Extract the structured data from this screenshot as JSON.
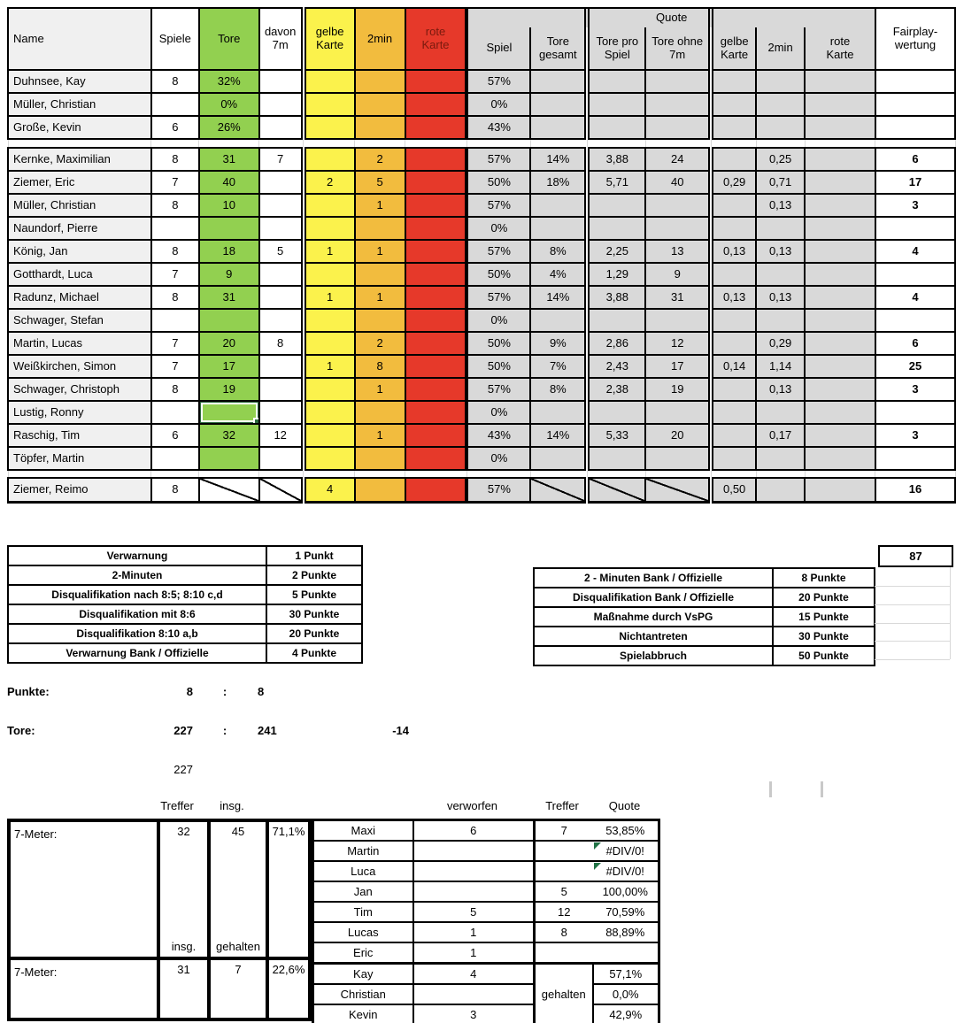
{
  "colors": {
    "green": "#92D050",
    "yellow": "#FBF24C",
    "orange": "#F2BC3E",
    "red": "#E6392A",
    "quote_gray": "#D9D9D9",
    "name_gray": "#F0F0F0",
    "selection_green": "#2E6B3E",
    "error_marker_green": "#217346",
    "red_header_text": "#7A1A0E"
  },
  "main_table": {
    "quote_group_label": "Quote",
    "columns": [
      {
        "key": "name",
        "label": "Name"
      },
      {
        "key": "spiele",
        "label": "Spiele"
      },
      {
        "key": "tore",
        "label": "Tore"
      },
      {
        "key": "davon7m",
        "label": "davon\n7m"
      },
      {
        "key": "gelbe",
        "label": "gelbe\nKarte"
      },
      {
        "key": "zweimin",
        "label": "2min"
      },
      {
        "key": "rote",
        "label": "rote\nKarte"
      },
      {
        "key": "q_spiel",
        "label": "Spiel"
      },
      {
        "key": "q_tore_gesamt",
        "label": "Tore\ngesamt"
      },
      {
        "key": "q_tore_pro_spiel",
        "label": "Tore pro\nSpiel"
      },
      {
        "key": "q_tore_ohne_7m",
        "label": "Tore ohne\n7m"
      },
      {
        "key": "q_gelbe",
        "label": "gelbe\nKarte"
      },
      {
        "key": "q_zweimin",
        "label": "2min"
      },
      {
        "key": "q_rote",
        "label": "rote\nKarte"
      },
      {
        "key": "fairplay",
        "label": "Fairplay-\nwertung"
      }
    ],
    "goalkeeper_rows": [
      {
        "name": "Duhnsee, Kay",
        "spiele": "8",
        "tore": "32%",
        "q_spiel": "57%"
      },
      {
        "name": "Müller, Christian",
        "tore": "0%",
        "q_spiel": "0%"
      },
      {
        "name": "Große, Kevin",
        "spiele": "6",
        "tore": "26%",
        "q_spiel": "43%"
      }
    ],
    "field_rows": [
      {
        "name": "Kernke, Maximilian",
        "spiele": "8",
        "tore": "31",
        "davon7m": "7",
        "zweimin": "2",
        "q_spiel": "57%",
        "q_tore_gesamt": "14%",
        "q_tore_pro_spiel": "3,88",
        "q_tore_ohne_7m": "24",
        "q_zweimin": "0,25",
        "fairplay": "6"
      },
      {
        "name": "Ziemer, Eric",
        "spiele": "7",
        "tore": "40",
        "gelbe": "2",
        "zweimin": "5",
        "q_spiel": "50%",
        "q_tore_gesamt": "18%",
        "q_tore_pro_spiel": "5,71",
        "q_tore_ohne_7m": "40",
        "q_gelbe": "0,29",
        "q_zweimin": "0,71",
        "fairplay": "17"
      },
      {
        "name": "Müller, Christian",
        "spiele": "8",
        "tore": "10",
        "zweimin": "1",
        "q_spiel": "57%",
        "q_zweimin": "0,13",
        "fairplay": "3"
      },
      {
        "name": "Naundorf, Pierre",
        "q_spiel": "0%"
      },
      {
        "name": "König, Jan",
        "spiele": "8",
        "tore": "18",
        "davon7m": "5",
        "gelbe": "1",
        "zweimin": "1",
        "q_spiel": "57%",
        "q_tore_gesamt": "8%",
        "q_tore_pro_spiel": "2,25",
        "q_tore_ohne_7m": "13",
        "q_gelbe": "0,13",
        "q_zweimin": "0,13",
        "fairplay": "4"
      },
      {
        "name": "Gotthardt, Luca",
        "spiele": "7",
        "tore": "9",
        "q_spiel": "50%",
        "q_tore_gesamt": "4%",
        "q_tore_pro_spiel": "1,29",
        "q_tore_ohne_7m": "9"
      },
      {
        "name": "Radunz, Michael",
        "spiele": "8",
        "tore": "31",
        "gelbe": "1",
        "zweimin": "1",
        "q_spiel": "57%",
        "q_tore_gesamt": "14%",
        "q_tore_pro_spiel": "3,88",
        "q_tore_ohne_7m": "31",
        "q_gelbe": "0,13",
        "q_zweimin": "0,13",
        "fairplay": "4"
      },
      {
        "name": "Schwager, Stefan",
        "q_spiel": "0%"
      },
      {
        "name": "Martin, Lucas",
        "spiele": "7",
        "tore": "20",
        "davon7m": "8",
        "zweimin": "2",
        "q_spiel": "50%",
        "q_tore_gesamt": "9%",
        "q_tore_pro_spiel": "2,86",
        "q_tore_ohne_7m": "12",
        "q_zweimin": "0,29",
        "fairplay": "6"
      },
      {
        "name": "Weißkirchen, Simon",
        "spiele": "7",
        "tore": "17",
        "gelbe": "1",
        "zweimin": "8",
        "q_spiel": "50%",
        "q_tore_gesamt": "7%",
        "q_tore_pro_spiel": "2,43",
        "q_tore_ohne_7m": "17",
        "q_gelbe": "0,14",
        "q_zweimin": "1,14",
        "fairplay": "25"
      },
      {
        "name": "Schwager, Christoph",
        "spiele": "8",
        "tore": "19",
        "zweimin": "1",
        "q_spiel": "57%",
        "q_tore_gesamt": "8%",
        "q_tore_pro_spiel": "2,38",
        "q_tore_ohne_7m": "19",
        "q_zweimin": "0,13",
        "fairplay": "3"
      },
      {
        "name": "Lustig, Ronny",
        "q_spiel": "0%",
        "selected_column": "tore"
      },
      {
        "name": "Raschig, Tim",
        "spiele": "6",
        "tore": "32",
        "davon7m": "12",
        "zweimin": "1",
        "q_spiel": "43%",
        "q_tore_gesamt": "14%",
        "q_tore_pro_spiel": "5,33",
        "q_tore_ohne_7m": "20",
        "q_zweimin": "0,17",
        "fairplay": "3"
      },
      {
        "name": "Töpfer, Martin",
        "q_spiel": "0%"
      }
    ],
    "officials_row": {
      "name": "Ziemer, Reimo",
      "spiele": "8",
      "gelbe": "4",
      "q_spiel": "57%",
      "q_gelbe": "0,50",
      "fairplay": "16",
      "slash_columns": [
        "tore",
        "davon7m",
        "q_tore_gesamt",
        "q_tore_pro_spiel",
        "q_tore_ohne_7m"
      ]
    }
  },
  "fairplay_total": "87",
  "legend_left": [
    {
      "label": "Verwarnung",
      "points": "1 Punkt"
    },
    {
      "label": "2-Minuten",
      "points": "2 Punkte"
    },
    {
      "label": "Disqualifikation nach 8:5; 8:10 c,d",
      "points": "5 Punkte"
    },
    {
      "label": "Disqualifikation mit 8:6",
      "points": "30 Punkte"
    },
    {
      "label": "Disqualifikation 8:10 a,b",
      "points": "20 Punkte"
    },
    {
      "label": "Verwarnung Bank / Offizielle",
      "points": "4 Punkte"
    }
  ],
  "legend_right": [
    {
      "label": "2 - Minuten Bank / Offizielle",
      "points": "8 Punkte"
    },
    {
      "label": "Disqualifikation Bank / Offizielle",
      "points": "20 Punkte"
    },
    {
      "label": "Maßnahme durch VsPG",
      "points": "15 Punkte"
    },
    {
      "label": "Nichtantreten",
      "points": "30 Punkte"
    },
    {
      "label": "Spielabbruch",
      "points": "50 Punkte"
    }
  ],
  "score": {
    "punkte_label": "Punkte:",
    "punkte_home": "8",
    "separator": ":",
    "punkte_away": "8",
    "tore_label": "Tore:",
    "tore_home": "227",
    "tore_away": "241",
    "tore_diff": "-14",
    "tore_home_repeat": "227"
  },
  "seven_meter": {
    "headers": {
      "treffer_top": "Treffer",
      "insg_top": "insg.",
      "verworfen": "verworfen",
      "treffer": "Treffer",
      "quote": "Quote"
    },
    "block1": {
      "label": "7-Meter:",
      "treffer": "32",
      "insgesamt": "45",
      "quote": "71,1%",
      "insg_bottom": "insg.",
      "gehalten_bottom": "gehalten"
    },
    "block2": {
      "label": "7-Meter:",
      "insgesamt": "31",
      "gehalten": "7",
      "quote": "22,6%"
    },
    "gehalten_merged": "gehalten",
    "players": [
      {
        "name": "Maxi",
        "verworfen": "6",
        "treffer": "7",
        "quote": "53,85%"
      },
      {
        "name": "Martin",
        "quote": "#DIV/0!",
        "error": true
      },
      {
        "name": "Luca",
        "quote": "#DIV/0!",
        "error": true
      },
      {
        "name": "Jan",
        "treffer": "5",
        "quote": "100,00%"
      },
      {
        "name": "Tim",
        "verworfen": "5",
        "treffer": "12",
        "quote": "70,59%"
      },
      {
        "name": "Lucas",
        "verworfen": "1",
        "treffer": "8",
        "quote": "88,89%"
      },
      {
        "name": "Eric",
        "verworfen": "1"
      }
    ],
    "keepers": [
      {
        "name": "Kay",
        "verworfen": "4",
        "quote": "57,1%"
      },
      {
        "name": "Christian",
        "quote": "0,0%"
      },
      {
        "name": "Kevin",
        "verworfen": "3",
        "quote": "42,9%"
      }
    ]
  }
}
